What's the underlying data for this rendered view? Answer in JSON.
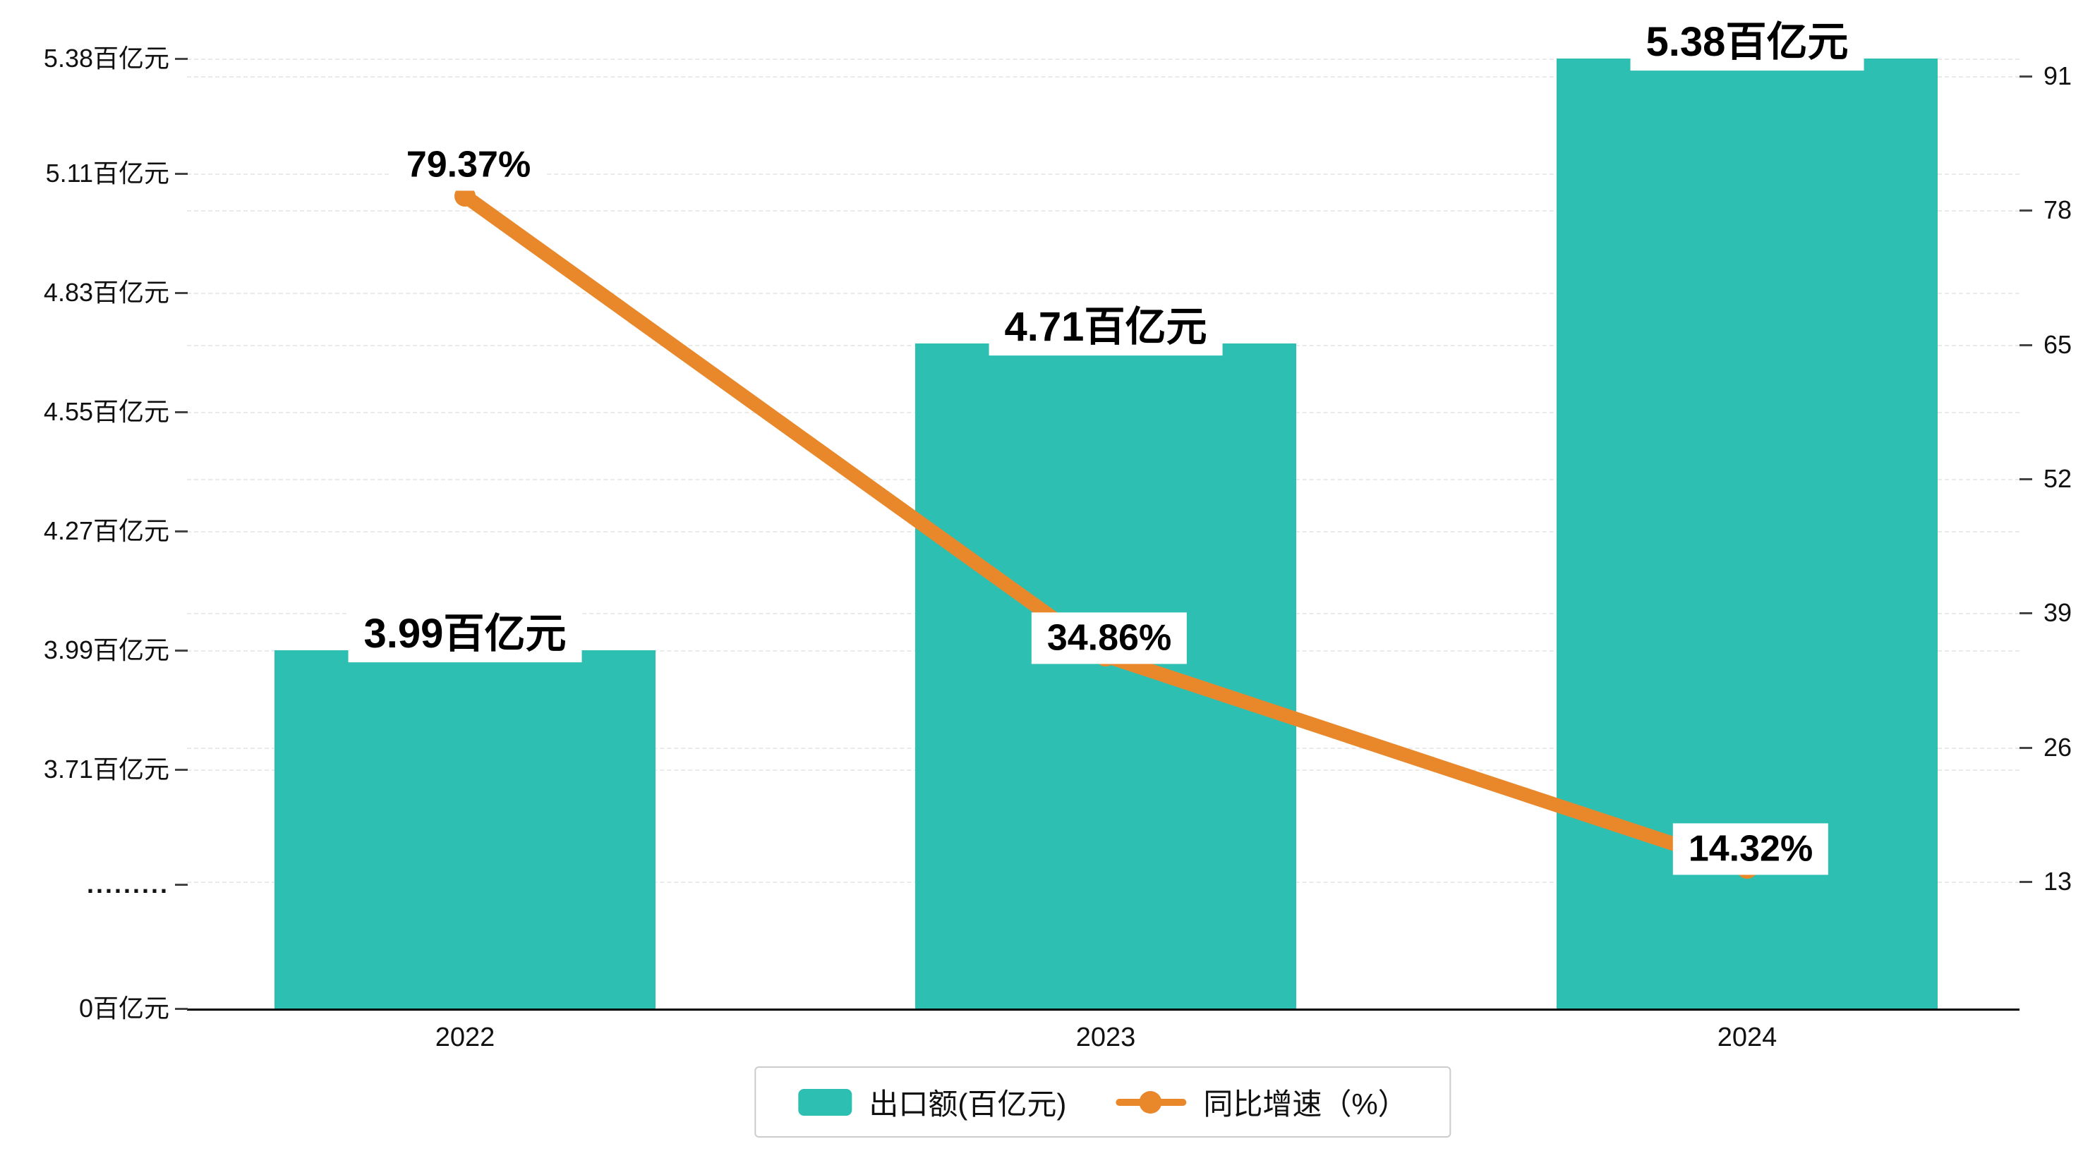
{
  "chart_data": {
    "type": "bar",
    "title": "",
    "categories": [
      "2022",
      "2023",
      "2024"
    ],
    "series": [
      {
        "name": "出口额(百亿元)",
        "type": "bar",
        "values": [
          3.99,
          4.71,
          5.38
        ],
        "labels": [
          "3.99百亿元",
          "4.71百亿元",
          "5.38百亿元"
        ],
        "color": "#2ebfb3"
      },
      {
        "name": "同比增速（%）",
        "type": "line",
        "values": [
          79.37,
          34.86,
          14.32
        ],
        "labels": [
          "79.37%",
          "34.86%",
          "14.32%"
        ],
        "color": "#e8882b"
      }
    ],
    "left_axis": {
      "tick_labels": [
        "5.38百亿元",
        "5.11百亿元",
        "4.83百亿元",
        "4.55百亿元",
        "4.27百亿元",
        "3.99百亿元",
        "3.71百亿元",
        ".........",
        "0百亿元"
      ],
      "tick_values": [
        5.38,
        5.11,
        4.83,
        4.55,
        4.27,
        3.99,
        3.71,
        null,
        0
      ],
      "axis_break": true
    },
    "right_axis": {
      "tick_labels": [
        "91",
        "78",
        "65",
        "52",
        "39",
        "26",
        "13"
      ],
      "tick_values": [
        91,
        78,
        65,
        52,
        39,
        26,
        13
      ]
    },
    "legend": [
      {
        "label": "出口额(百亿元)",
        "swatch": "bar"
      },
      {
        "label": "同比增速（%）",
        "swatch": "line"
      }
    ],
    "grid": "dashed",
    "legend_position": "bottom-center"
  }
}
